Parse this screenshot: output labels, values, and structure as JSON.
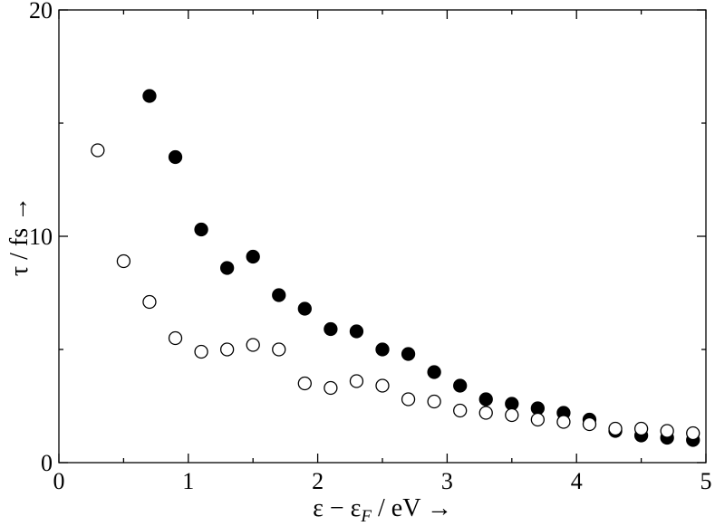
{
  "chart_data": {
    "type": "scatter",
    "xlabel": "ε − ε_F / eV →",
    "ylabel": "τ / fs →",
    "xlim": [
      0,
      5
    ],
    "ylim": [
      0,
      20
    ],
    "x_ticks": [
      0,
      1,
      2,
      3,
      4,
      5
    ],
    "y_ticks": [
      0,
      10,
      20
    ],
    "x_minor_ticks": [
      0.5,
      1.5,
      2.5,
      3.5,
      4.5
    ],
    "y_minor_ticks": [
      5,
      15
    ],
    "grid": false,
    "series": [
      {
        "marker": "filled-circle",
        "color": "#000000",
        "x": [
          0.7,
          0.9,
          1.1,
          1.3,
          1.5,
          1.7,
          1.9,
          2.1,
          2.3,
          2.5,
          2.7,
          2.9,
          3.1,
          3.3,
          3.5,
          3.7,
          3.9,
          4.1,
          4.3,
          4.5,
          4.7,
          4.9
        ],
        "y": [
          16.2,
          13.5,
          10.3,
          8.6,
          9.1,
          7.4,
          6.8,
          5.9,
          5.8,
          5.0,
          4.8,
          4.0,
          3.4,
          2.8,
          2.6,
          2.4,
          2.2,
          1.9,
          1.4,
          1.2,
          1.1,
          1.0
        ]
      },
      {
        "marker": "open-circle",
        "color": "#000000",
        "x": [
          0.3,
          0.5,
          0.7,
          0.9,
          1.1,
          1.3,
          1.5,
          1.7,
          1.9,
          2.1,
          2.3,
          2.5,
          2.7,
          2.9,
          3.1,
          3.3,
          3.5,
          3.7,
          3.9,
          4.1,
          4.3,
          4.5,
          4.7,
          4.9
        ],
        "y": [
          13.8,
          8.9,
          7.1,
          5.5,
          4.9,
          5.0,
          5.2,
          5.0,
          3.5,
          3.3,
          3.6,
          3.4,
          2.8,
          2.7,
          2.3,
          2.2,
          2.1,
          1.9,
          1.8,
          1.7,
          1.5,
          1.5,
          1.4,
          1.3
        ]
      }
    ]
  }
}
